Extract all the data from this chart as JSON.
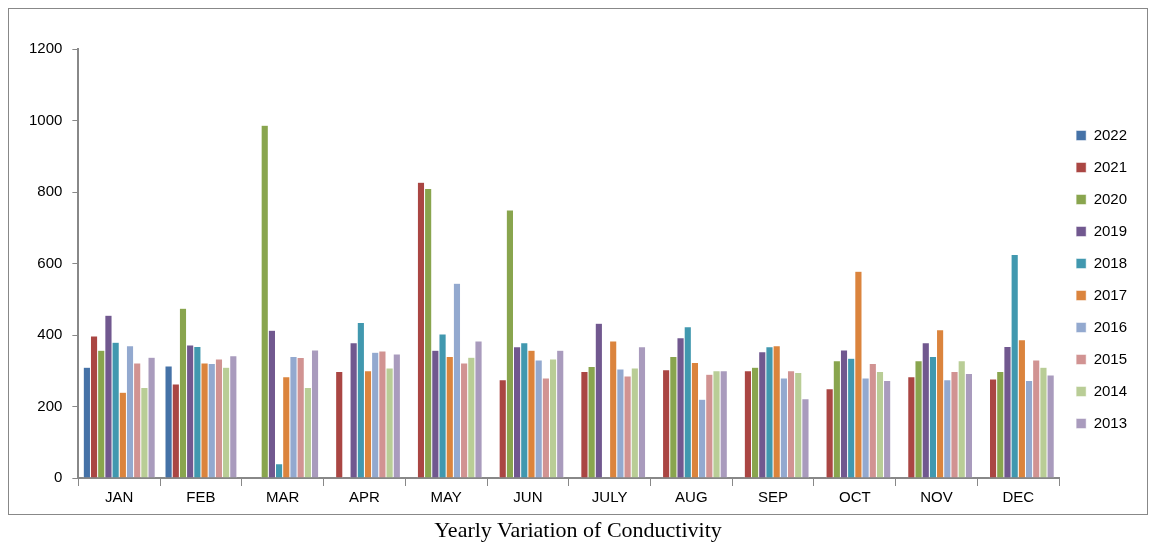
{
  "chart_data": {
    "type": "bar",
    "title": "Yearly Variation of Conductivity",
    "categories": [
      "JAN",
      "FEB",
      "MAR",
      "APR",
      "MAY",
      "JUN",
      "JULY",
      "AUG",
      "SEP",
      "OCT",
      "NOV",
      "DEC"
    ],
    "series": [
      {
        "name": "2022",
        "color": "#4572a7",
        "values": [
          310,
          313,
          null,
          null,
          null,
          null,
          null,
          null,
          null,
          null,
          null,
          null
        ]
      },
      {
        "name": "2021",
        "color": "#aa4643",
        "values": [
          397,
          263,
          null,
          298,
          827,
          275,
          298,
          303,
          300,
          250,
          283,
          277
        ]
      },
      {
        "name": "2020",
        "color": "#89a54e",
        "values": [
          357,
          475,
          987,
          null,
          810,
          750,
          312,
          340,
          310,
          328,
          328,
          298
        ]
      },
      {
        "name": "2019",
        "color": "#71588f",
        "values": [
          455,
          372,
          413,
          378,
          357,
          367,
          433,
          392,
          353,
          358,
          378,
          368
        ]
      },
      {
        "name": "2018",
        "color": "#4198af",
        "values": [
          380,
          368,
          40,
          435,
          403,
          378,
          null,
          423,
          367,
          335,
          340,
          625
        ]
      },
      {
        "name": "2017",
        "color": "#db843d",
        "values": [
          240,
          322,
          283,
          300,
          340,
          357,
          383,
          323,
          370,
          578,
          415,
          387
        ]
      },
      {
        "name": "2016",
        "color": "#93a9cf",
        "values": [
          370,
          320,
          340,
          352,
          545,
          330,
          305,
          220,
          280,
          280,
          275,
          273
        ]
      },
      {
        "name": "2015",
        "color": "#d19392",
        "values": [
          322,
          333,
          337,
          355,
          322,
          280,
          285,
          290,
          300,
          320,
          298,
          330
        ]
      },
      {
        "name": "2014",
        "color": "#b9cd96",
        "values": [
          253,
          310,
          253,
          308,
          338,
          333,
          308,
          300,
          295,
          298,
          328,
          310
        ]
      },
      {
        "name": "2013",
        "color": "#a99bbd",
        "values": [
          338,
          342,
          358,
          347,
          383,
          357,
          367,
          300,
          222,
          273,
          292,
          288
        ]
      }
    ],
    "ylim": [
      0,
      1200
    ],
    "yticks": [
      0,
      200,
      400,
      600,
      800,
      1000,
      1200
    ],
    "grid": false,
    "legend": "right"
  }
}
